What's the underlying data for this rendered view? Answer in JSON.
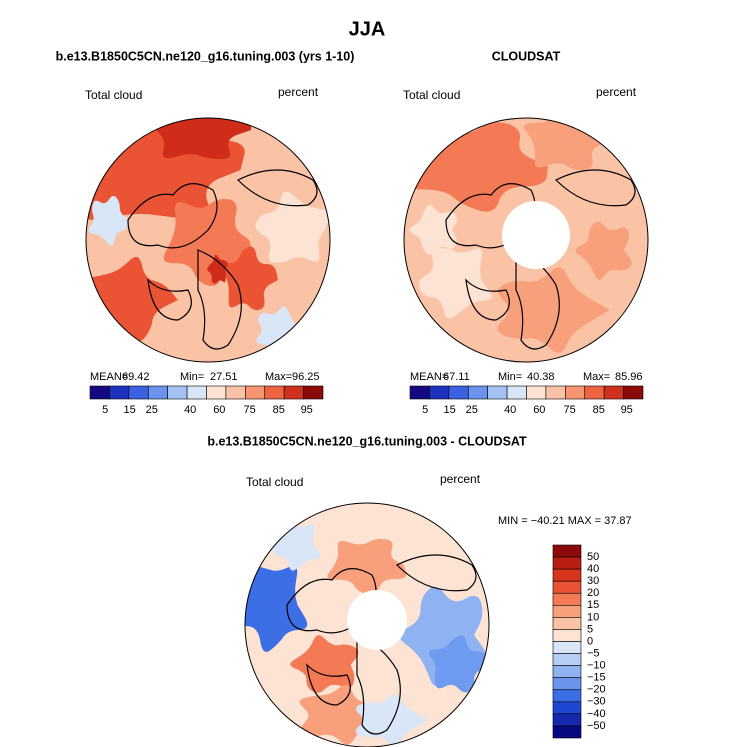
{
  "title": "JJA",
  "panels": [
    {
      "title": "b.e13.B1850C5CN.ne120_g16.tuning.003 (yrs 1-10)",
      "left_label": "Total cloud",
      "right_label": "percent",
      "stats": [
        {
          "label": "MEAN=",
          "value": "69.42"
        },
        {
          "label": "Min=",
          "value": "27.51"
        },
        {
          "label": "Max=",
          "value": "96.25"
        }
      ],
      "colorbar_labels": [
        "5",
        "15",
        "25",
        "40",
        "60",
        "75",
        "85",
        "95"
      ]
    },
    {
      "title": "CLOUDSAT",
      "left_label": "Total cloud",
      "right_label": "percent",
      "stats": [
        {
          "label": "MEAN=",
          "value": "67.11"
        },
        {
          "label": "Min=",
          "value": "40.38"
        },
        {
          "label": "Max=",
          "value": "85.96"
        }
      ],
      "colorbar_labels": [
        "5",
        "15",
        "25",
        "40",
        "60",
        "75",
        "85",
        "95"
      ]
    }
  ],
  "difference": {
    "title": "b.e13.B1850C5CN.ne120_g16.tuning.003 - CLOUDSAT",
    "left_label": "Total cloud",
    "right_label": "percent",
    "stats": "MIN = −40.21 MAX =  37.87",
    "colorbar_labels": [
      "50",
      "40",
      "30",
      "20",
      "15",
      "10",
      "5",
      "0",
      "−5",
      "−10",
      "−15",
      "−20",
      "−30",
      "−40",
      "−50"
    ]
  }
}
